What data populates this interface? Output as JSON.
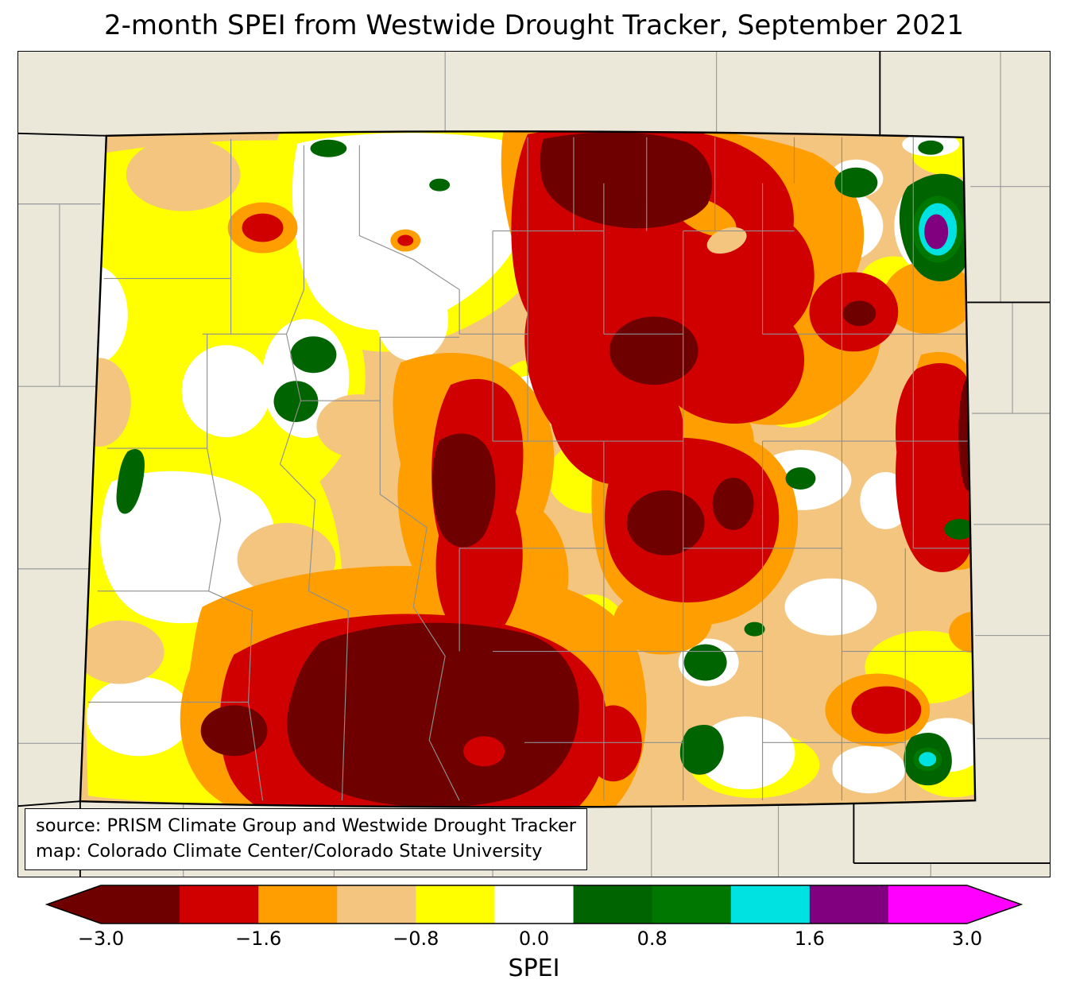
{
  "title": "2-month SPEI from Westwide Drought Tracker, September 2021",
  "annotation": {
    "line1": "source: PRISM Climate Group and Westwide Drought Tracker",
    "line2": "map: Colorado Climate Center/Colorado State University"
  },
  "colorbar": {
    "label": "SPEI",
    "segments": [
      "#6f0000",
      "#d10000",
      "#ff9e00",
      "#f3c57f",
      "#ffff00",
      "#ffffff",
      "#006400",
      "#007800",
      "#00e1e1",
      "#800080",
      "#ff00ff"
    ],
    "extend_colors": {
      "left": "#6f0000",
      "right": "#ff00ff"
    },
    "ticks": [
      {
        "label": "−3.0",
        "pos": 0
      },
      {
        "label": "−1.6",
        "pos": 0.1818
      },
      {
        "label": "−0.8",
        "pos": 0.3636
      },
      {
        "label": "0.0",
        "pos": 0.5
      },
      {
        "label": "0.8",
        "pos": 0.6364
      },
      {
        "label": "1.6",
        "pos": 0.8182
      },
      {
        "label": "3.0",
        "pos": 1
      }
    ]
  },
  "palette": {
    "darkred": "#6f0000",
    "red": "#d10000",
    "orange": "#ff9e00",
    "tan": "#f3c57f",
    "yellow": "#ffff00",
    "white": "#ffffff",
    "green": "#006400",
    "green2": "#007800",
    "cyan": "#00e1e1",
    "purple": "#800080",
    "magenta": "#ff00ff",
    "mapbg": "#ebe8da",
    "county": "#8f8f8f"
  },
  "chart_data": {
    "type": "contour_map",
    "title": "2-month SPEI from Westwide Drought Tracker, September 2021",
    "region": "Colorado",
    "variable": "2-month SPEI",
    "colorbar_label": "SPEI",
    "colorbar_tick_values": [
      -3.0,
      -1.6,
      -0.8,
      0.0,
      0.8,
      1.6,
      3.0
    ],
    "colorbar_extend": "both",
    "colors_low_to_high": [
      "#6f0000",
      "#d10000",
      "#ff9e00",
      "#f3c57f",
      "#ffff00",
      "#ffffff",
      "#006400",
      "#007800",
      "#00e1e1",
      "#800080",
      "#ff00ff"
    ]
  }
}
